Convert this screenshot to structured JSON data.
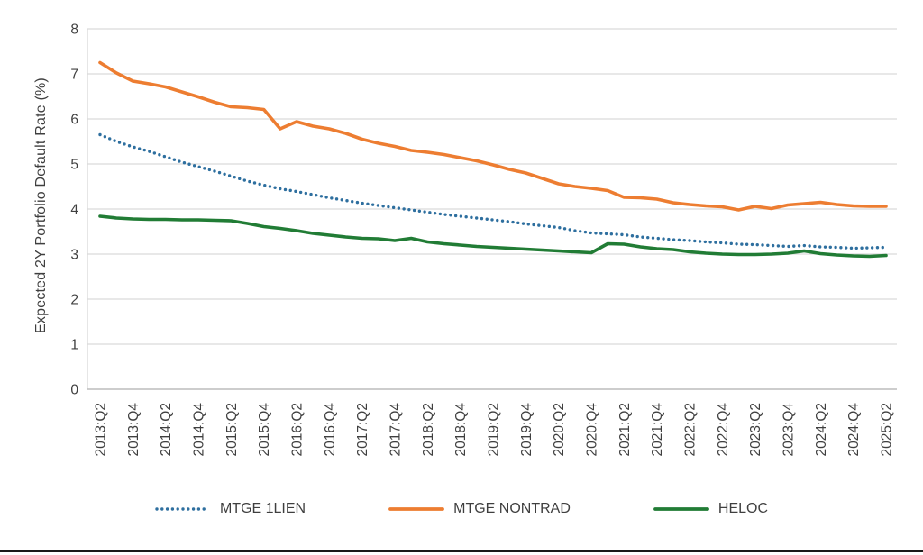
{
  "page": {
    "background": "#FFFFFF",
    "bottom_rule_color": "#1A1A1A"
  },
  "chart_data": {
    "type": "line",
    "title": "",
    "ylabel": "Expected 2Y Portfolio Default Rate (%)",
    "xlabel": "",
    "ylim": [
      0,
      8
    ],
    "yticks": [
      0,
      1,
      2,
      3,
      4,
      5,
      6,
      7,
      8
    ],
    "grid": "horizontal",
    "grid_color": "#D9D9D9",
    "axis_line_color": "#BFBFBF",
    "axis_text_color": "#3F3F3F",
    "legend_position": "bottom",
    "points_per_tick": 2,
    "x_tick_labels": [
      "2013:Q2",
      "2013:Q4",
      "2014:Q2",
      "2014:Q4",
      "2015:Q2",
      "2015:Q4",
      "2016:Q2",
      "2016:Q4",
      "2017:Q2",
      "2017:Q4",
      "2018:Q2",
      "2018:Q4",
      "2019:Q2",
      "2019:Q4",
      "2020:Q2",
      "2020:Q4",
      "2021:Q2",
      "2021:Q4",
      "2022:Q2",
      "2022:Q4",
      "2023:Q2",
      "2023:Q4",
      "2024:Q2",
      "2024:Q4",
      "2025:Q2"
    ],
    "series": [
      {
        "name": "MTGE 1LIEN",
        "color": "#2E6F9F",
        "style": "dotted",
        "values": [
          5.65,
          5.5,
          5.38,
          5.28,
          5.16,
          5.04,
          4.94,
          4.84,
          4.73,
          4.62,
          4.53,
          4.45,
          4.39,
          4.32,
          4.25,
          4.19,
          4.13,
          4.08,
          4.03,
          3.98,
          3.93,
          3.88,
          3.84,
          3.8,
          3.76,
          3.72,
          3.67,
          3.63,
          3.59,
          3.52,
          3.47,
          3.45,
          3.43,
          3.38,
          3.35,
          3.32,
          3.3,
          3.27,
          3.25,
          3.22,
          3.21,
          3.19,
          3.17,
          3.19,
          3.16,
          3.15,
          3.13,
          3.14,
          3.15
        ]
      },
      {
        "name": "MTGE NONTRAD",
        "color": "#ED7D31",
        "style": "solid",
        "values": [
          7.25,
          7.02,
          6.84,
          6.78,
          6.71,
          6.6,
          6.49,
          6.37,
          6.27,
          6.25,
          6.21,
          5.78,
          5.94,
          5.84,
          5.78,
          5.68,
          5.55,
          5.46,
          5.39,
          5.3,
          5.26,
          5.21,
          5.14,
          5.07,
          4.98,
          4.88,
          4.8,
          4.68,
          4.56,
          4.5,
          4.46,
          4.41,
          4.26,
          4.25,
          4.22,
          4.14,
          4.1,
          4.07,
          4.05,
          3.98,
          4.06,
          4.01,
          4.09,
          4.12,
          4.15,
          4.1,
          4.07,
          4.06,
          4.06
        ]
      },
      {
        "name": "HELOC",
        "color": "#217C35",
        "style": "solid",
        "values": [
          3.84,
          3.8,
          3.78,
          3.77,
          3.77,
          3.76,
          3.76,
          3.75,
          3.74,
          3.68,
          3.61,
          3.57,
          3.52,
          3.46,
          3.42,
          3.38,
          3.35,
          3.34,
          3.3,
          3.35,
          3.27,
          3.23,
          3.2,
          3.17,
          3.15,
          3.13,
          3.11,
          3.09,
          3.07,
          3.05,
          3.03,
          3.23,
          3.22,
          3.16,
          3.12,
          3.1,
          3.05,
          3.02,
          3.0,
          2.99,
          2.99,
          3.0,
          3.02,
          3.07,
          3.01,
          2.98,
          2.96,
          2.95,
          2.97
        ]
      }
    ]
  }
}
